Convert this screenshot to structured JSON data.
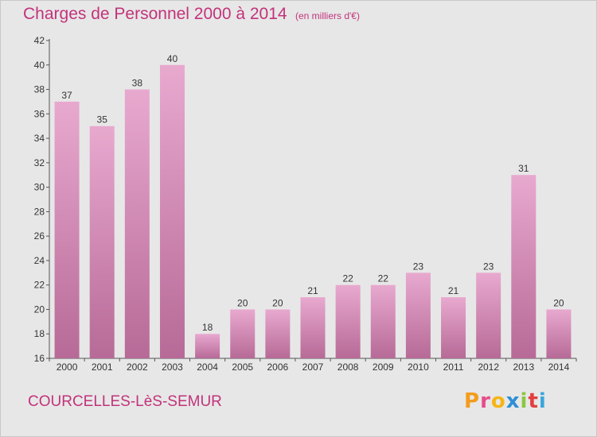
{
  "header": {
    "title": "Charges de Personnel 2000 à 2014",
    "unit": "(en milliers d'€)"
  },
  "footer": {
    "commune": "COURCELLES-LèS-SEMUR",
    "logo_letters": [
      "P",
      "r",
      "o",
      "x",
      "i",
      "t",
      "i"
    ]
  },
  "colors": {
    "accent": "#c2337a",
    "bar_light": "#e8a9cf",
    "bar_dark": "#b76a97",
    "background": "#e7e7e7",
    "logo": [
      "#f39c1d",
      "#e84b8a",
      "#f6b517",
      "#2e8fd6",
      "#8cc63e",
      "#e23f3f",
      "#3aa6dc"
    ]
  },
  "chart_data": {
    "type": "bar",
    "title": "Charges de Personnel 2000 à 2014",
    "subtitle": "(en milliers d'€)",
    "xlabel": "",
    "ylabel": "",
    "categories": [
      "2000",
      "2001",
      "2002",
      "2003",
      "2004",
      "2005",
      "2006",
      "2007",
      "2008",
      "2009",
      "2010",
      "2011",
      "2012",
      "2013",
      "2014"
    ],
    "values": [
      37,
      35,
      38,
      40,
      18,
      20,
      20,
      21,
      22,
      22,
      23,
      21,
      23,
      31,
      20
    ],
    "value_labels": [
      "37",
      "35",
      "38",
      "40",
      "18",
      "20",
      "20",
      "21",
      "22",
      "22",
      "23",
      "21",
      "23",
      "31",
      "20"
    ],
    "ylim": [
      16,
      42
    ],
    "yticks": [
      16,
      18,
      20,
      22,
      24,
      26,
      28,
      30,
      32,
      34,
      36,
      38,
      40,
      42
    ],
    "ytick_labels": [
      "16",
      "18",
      "20",
      "22",
      "24",
      "26",
      "28",
      "30",
      "32",
      "34",
      "36",
      "38",
      "40",
      "42"
    ],
    "grid": false,
    "legend": "none"
  }
}
